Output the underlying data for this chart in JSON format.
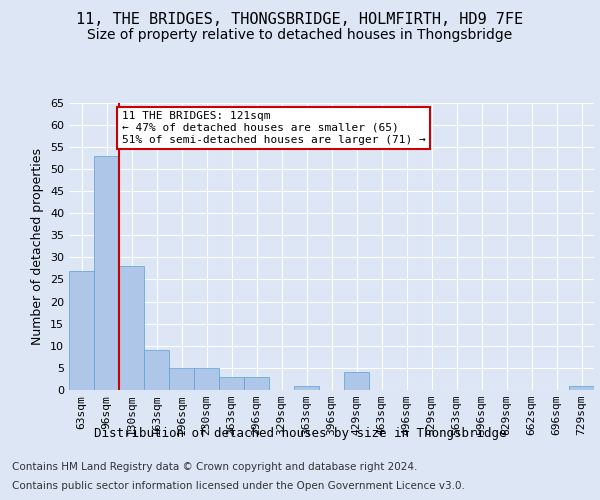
{
  "title": "11, THE BRIDGES, THONGSBRIDGE, HOLMFIRTH, HD9 7FE",
  "subtitle": "Size of property relative to detached houses in Thongsbridge",
  "xlabel": "Distribution of detached houses by size in Thongsbridge",
  "ylabel": "Number of detached properties",
  "categories": [
    "63sqm",
    "96sqm",
    "130sqm",
    "163sqm",
    "196sqm",
    "230sqm",
    "263sqm",
    "296sqm",
    "329sqm",
    "363sqm",
    "396sqm",
    "429sqm",
    "463sqm",
    "496sqm",
    "529sqm",
    "563sqm",
    "596sqm",
    "629sqm",
    "662sqm",
    "696sqm",
    "729sqm"
  ],
  "values": [
    27,
    53,
    28,
    9,
    5,
    5,
    3,
    3,
    0,
    1,
    0,
    4,
    0,
    0,
    0,
    0,
    0,
    0,
    0,
    0,
    1
  ],
  "bar_color": "#aec6e8",
  "bar_edge_color": "#5a9fd4",
  "vline_x": 1.5,
  "vline_color": "#cc0000",
  "annotation_text": "11 THE BRIDGES: 121sqm\n← 47% of detached houses are smaller (65)\n51% of semi-detached houses are larger (71) →",
  "annotation_box_color": "#ffffff",
  "annotation_box_edge": "#cc0000",
  "ylim": [
    0,
    65
  ],
  "yticks": [
    0,
    5,
    10,
    15,
    20,
    25,
    30,
    35,
    40,
    45,
    50,
    55,
    60,
    65
  ],
  "background_color": "#dce6f5",
  "plot_bg_color": "#dce6f5",
  "footer_line1": "Contains HM Land Registry data © Crown copyright and database right 2024.",
  "footer_line2": "Contains public sector information licensed under the Open Government Licence v3.0.",
  "title_fontsize": 11,
  "subtitle_fontsize": 10,
  "axis_label_fontsize": 9,
  "tick_fontsize": 8,
  "annotation_fontsize": 8,
  "footer_fontsize": 7.5
}
